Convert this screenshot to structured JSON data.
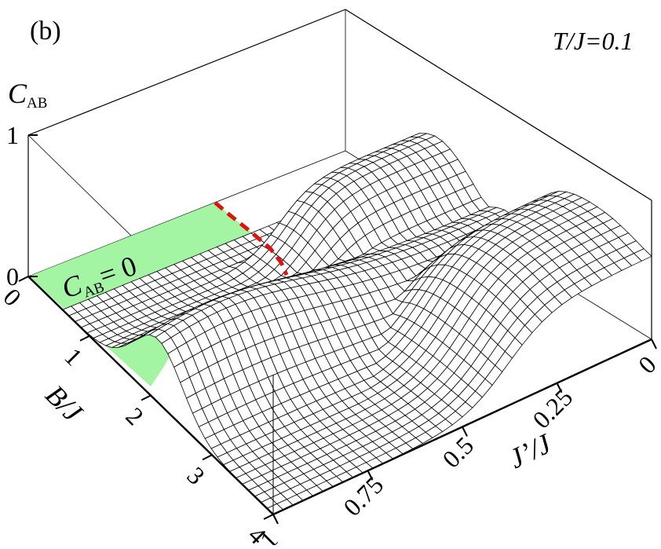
{
  "panel_label": "(b)",
  "condition_label": "T/J=0.1",
  "chart_data": {
    "type": "surface3d",
    "z_label": "C",
    "z_label_sub": "AB",
    "x_label": "J’/J",
    "y_label": "B/J",
    "x_range": [
      1,
      0
    ],
    "y_range": [
      0,
      4
    ],
    "z_range": [
      0,
      1
    ],
    "z_ticks": [
      "0",
      "1"
    ],
    "y_ticks": [
      "0",
      "1",
      "2",
      "3",
      "4"
    ],
    "x_ticks": [
      "1",
      "0.75",
      "0.5",
      "0.25",
      "0"
    ],
    "region_annotation": {
      "label_main": "C",
      "label_sub": "AB",
      "label_rest": "= 0",
      "fill_color": "#a3f5a3"
    },
    "boundary_line_color": "#e0120f",
    "mesh_color": "#000000"
  }
}
